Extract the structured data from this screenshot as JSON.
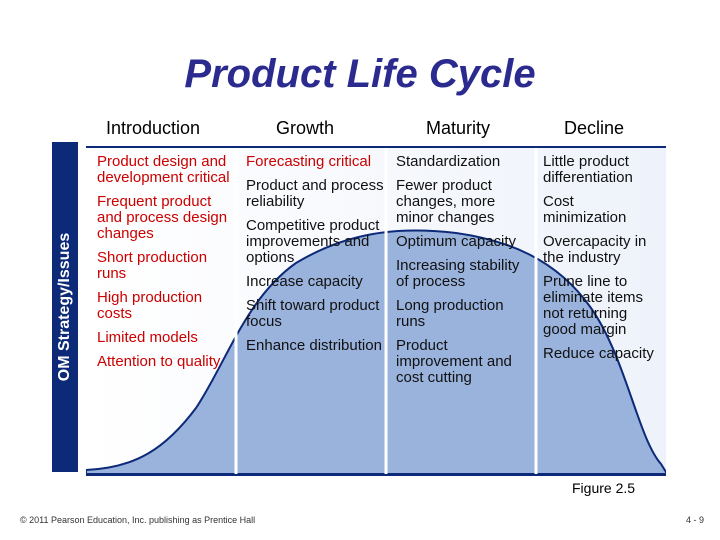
{
  "title": "Product Life Cycle",
  "side_label": "OM Strategy/Issues",
  "stages": [
    "Introduction",
    "Growth",
    "Maturity",
    "Decline"
  ],
  "columns": [
    {
      "items": [
        "Product design and development critical",
        "Frequent product and process design changes",
        "Short production runs",
        "High production costs",
        "Limited models",
        "Attention to quality"
      ]
    },
    {
      "items": [
        "Forecasting critical",
        "Product and process reliability",
        "Competitive product improvements and options",
        "Increase capacity",
        "Shift toward product focus",
        "Enhance distribution"
      ]
    },
    {
      "items": [
        "Standardization",
        "Fewer product changes, more minor changes",
        "Optimum capacity",
        "Increasing stability of process",
        "Long production runs",
        "Product improvement and cost cutting"
      ]
    },
    {
      "items": [
        "Little product differentiation",
        "Cost minimization",
        "Overcapacity in the industry",
        "Prune line to eliminate items not returning good margin",
        "Reduce capacity"
      ]
    }
  ],
  "figure_label": "Figure 2.5",
  "footer": "© 2011 Pearson Education, Inc. publishing as Prentice Hall",
  "page_number": "4 - 9",
  "colors": {
    "navy": "#0d2a78",
    "title": "#2b2b8f",
    "curve_fill": "#9ab3dd",
    "intro_text": "#cc0000"
  }
}
